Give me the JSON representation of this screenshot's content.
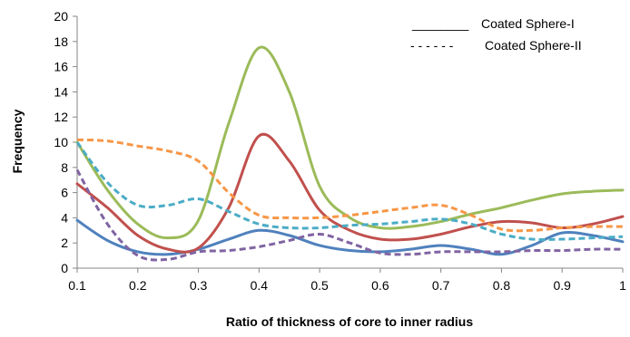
{
  "chart_data": {
    "type": "line",
    "title": "",
    "xlabel": "Ratio of thickness of core to inner radius",
    "ylabel": "Frequency",
    "xlim": [
      0.1,
      1
    ],
    "ylim": [
      0,
      20
    ],
    "x_ticks": [
      "0.1",
      "0.2",
      "0.3",
      "0.4",
      "0.5",
      "0.6",
      "0.7",
      "0.8",
      "0.9",
      "1"
    ],
    "y_ticks": [
      "0",
      "2",
      "4",
      "6",
      "8",
      "10",
      "12",
      "14",
      "16",
      "18",
      "20"
    ],
    "grid": false,
    "legend": {
      "placement": "top-right",
      "entries": [
        {
          "symbol": "________",
          "label": "Coated Sphere-I",
          "style": "solid"
        },
        {
          "symbol": "- - - - - -",
          "label": "Coated Sphere-II",
          "style": "dashed"
        }
      ]
    },
    "series": [
      {
        "style": "solid",
        "color": "#4F81BD",
        "points": [
          [
            0.1,
            3.8
          ],
          [
            0.15,
            2.2
          ],
          [
            0.2,
            1.3
          ],
          [
            0.25,
            1.1
          ],
          [
            0.3,
            1.5
          ],
          [
            0.35,
            2.3
          ],
          [
            0.4,
            3.0
          ],
          [
            0.45,
            2.6
          ],
          [
            0.5,
            1.8
          ],
          [
            0.55,
            1.4
          ],
          [
            0.6,
            1.3
          ],
          [
            0.65,
            1.5
          ],
          [
            0.7,
            1.8
          ],
          [
            0.75,
            1.5
          ],
          [
            0.8,
            1.1
          ],
          [
            0.85,
            1.8
          ],
          [
            0.9,
            2.8
          ],
          [
            0.95,
            2.6
          ],
          [
            1.0,
            2.1
          ]
        ]
      },
      {
        "style": "solid",
        "color": "#C0504D",
        "points": [
          [
            0.1,
            6.7
          ],
          [
            0.15,
            4.8
          ],
          [
            0.2,
            2.6
          ],
          [
            0.25,
            1.5
          ],
          [
            0.3,
            1.6
          ],
          [
            0.35,
            4.8
          ],
          [
            0.4,
            10.5
          ],
          [
            0.45,
            8.5
          ],
          [
            0.5,
            4.6
          ],
          [
            0.55,
            3.0
          ],
          [
            0.6,
            2.3
          ],
          [
            0.65,
            2.3
          ],
          [
            0.7,
            2.7
          ],
          [
            0.75,
            3.3
          ],
          [
            0.8,
            3.7
          ],
          [
            0.85,
            3.6
          ],
          [
            0.9,
            3.2
          ],
          [
            0.95,
            3.5
          ],
          [
            1.0,
            4.1
          ]
        ]
      },
      {
        "style": "solid",
        "color": "#9BBB59",
        "points": [
          [
            0.1,
            10.0
          ],
          [
            0.15,
            6.2
          ],
          [
            0.2,
            3.5
          ],
          [
            0.25,
            2.4
          ],
          [
            0.3,
            3.8
          ],
          [
            0.35,
            11.5
          ],
          [
            0.4,
            17.5
          ],
          [
            0.45,
            14.0
          ],
          [
            0.5,
            6.5
          ],
          [
            0.55,
            4.0
          ],
          [
            0.6,
            3.2
          ],
          [
            0.65,
            3.3
          ],
          [
            0.7,
            3.7
          ],
          [
            0.75,
            4.3
          ],
          [
            0.8,
            4.8
          ],
          [
            0.85,
            5.4
          ],
          [
            0.9,
            5.9
          ],
          [
            0.95,
            6.1
          ],
          [
            1.0,
            6.2
          ]
        ]
      },
      {
        "style": "dashed",
        "color": "#8064A2",
        "points": [
          [
            0.1,
            7.8
          ],
          [
            0.15,
            3.5
          ],
          [
            0.2,
            1.0
          ],
          [
            0.25,
            0.7
          ],
          [
            0.3,
            1.3
          ],
          [
            0.35,
            1.4
          ],
          [
            0.4,
            1.7
          ],
          [
            0.45,
            2.2
          ],
          [
            0.5,
            2.7
          ],
          [
            0.55,
            2.0
          ],
          [
            0.6,
            1.2
          ],
          [
            0.65,
            1.1
          ],
          [
            0.7,
            1.3
          ],
          [
            0.75,
            1.3
          ],
          [
            0.8,
            1.3
          ],
          [
            0.85,
            1.4
          ],
          [
            0.9,
            1.4
          ],
          [
            0.95,
            1.5
          ],
          [
            1.0,
            1.5
          ]
        ]
      },
      {
        "style": "dashed",
        "color": "#4BACC6",
        "points": [
          [
            0.1,
            10.0
          ],
          [
            0.15,
            6.8
          ],
          [
            0.2,
            5.0
          ],
          [
            0.25,
            5.0
          ],
          [
            0.3,
            5.5
          ],
          [
            0.35,
            4.5
          ],
          [
            0.4,
            3.5
          ],
          [
            0.45,
            3.2
          ],
          [
            0.5,
            3.2
          ],
          [
            0.55,
            3.4
          ],
          [
            0.6,
            3.5
          ],
          [
            0.65,
            3.7
          ],
          [
            0.7,
            3.9
          ],
          [
            0.75,
            3.5
          ],
          [
            0.8,
            2.7
          ],
          [
            0.85,
            2.3
          ],
          [
            0.9,
            2.3
          ],
          [
            0.95,
            2.4
          ],
          [
            1.0,
            2.5
          ]
        ]
      },
      {
        "style": "dashed",
        "color": "#F79646",
        "points": [
          [
            0.1,
            10.2
          ],
          [
            0.15,
            10.1
          ],
          [
            0.2,
            9.7
          ],
          [
            0.25,
            9.3
          ],
          [
            0.3,
            8.5
          ],
          [
            0.35,
            6.0
          ],
          [
            0.4,
            4.2
          ],
          [
            0.45,
            4.0
          ],
          [
            0.5,
            4.0
          ],
          [
            0.55,
            4.2
          ],
          [
            0.6,
            4.5
          ],
          [
            0.65,
            4.8
          ],
          [
            0.7,
            5.0
          ],
          [
            0.75,
            4.2
          ],
          [
            0.8,
            3.1
          ],
          [
            0.85,
            3.0
          ],
          [
            0.9,
            3.2
          ],
          [
            0.95,
            3.3
          ],
          [
            1.0,
            3.3
          ]
        ]
      }
    ]
  }
}
